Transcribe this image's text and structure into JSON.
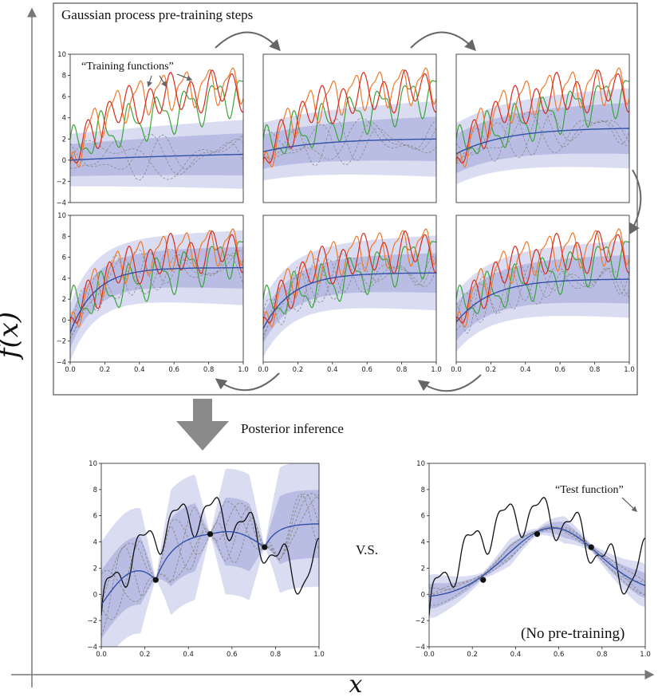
{
  "title": "Gaussian process pre-training steps",
  "training_functions_label": "“Training functions”",
  "posterior_label": "Posterior inference",
  "vs_label": "V.S.",
  "test_function_label": "“Test function”",
  "no_pretraining_label": "(No pre-training)",
  "y_axis_label": "f(x)",
  "x_axis_label": "x",
  "colors": {
    "green": "#3aa53a",
    "orange": "#f07a2a",
    "red": "#d62c1f",
    "mean": "#3350a8",
    "band_inner": "#b9bde3",
    "band_outer": "#dadcf2",
    "sample": "#8a8a8a",
    "test": "#111111",
    "arrow": "#666666"
  },
  "chart_data": [
    {
      "type": "line",
      "panel": "pretraining step 1",
      "xlim": [
        0,
        1
      ],
      "ylim": [
        -4,
        10
      ],
      "x_ticks": [],
      "y_ticks": [
        "10",
        "8",
        "6",
        "4",
        "2",
        "0",
        "−2",
        "−4"
      ],
      "mean": {
        "start": 0.0,
        "end": 0.55,
        "rise_rate": 1.0
      },
      "sd_inner": 1.9,
      "sd_outer": 3.1,
      "series": [
        {
          "values_desc": "training functions green/orange/red"
        }
      ]
    },
    {
      "type": "line",
      "panel": "pretraining step 2",
      "xlim": [
        0,
        1
      ],
      "ylim": [
        -4,
        10
      ],
      "mean": {
        "start": 0.8,
        "end": 2.0,
        "rise_rate": 3.0
      },
      "sd_inner": 2.0,
      "sd_outer": 3.4
    },
    {
      "type": "line",
      "panel": "pretraining step 3",
      "xlim": [
        0,
        1
      ],
      "ylim": [
        -4,
        10
      ],
      "mean": {
        "start": 0.6,
        "end": 3.0,
        "rise_rate": 3.5
      },
      "sd_inner": 2.3,
      "sd_outer": 3.6
    },
    {
      "type": "line",
      "panel": "pretraining step 4",
      "xlim": [
        0,
        1
      ],
      "ylim": [
        -4,
        10
      ],
      "x_ticks": [
        "0.0",
        "0.2",
        "0.4",
        "0.6",
        "0.8",
        "1.0"
      ],
      "y_ticks": [
        "10",
        "8",
        "6",
        "4",
        "2",
        "0",
        "−2",
        "−4"
      ],
      "mean": {
        "start": -1.2,
        "end": 5.0,
        "rise_rate": 7.0
      },
      "sd_inner": 1.9,
      "sd_outer": 3.4
    },
    {
      "type": "line",
      "panel": "pretraining step 5",
      "xlim": [
        0,
        1
      ],
      "ylim": [
        -4,
        10
      ],
      "x_ticks": [
        "0.0",
        "0.2",
        "0.4",
        "0.6",
        "0.8",
        "1.0"
      ],
      "mean": {
        "start": -0.8,
        "end": 4.5,
        "rise_rate": 6.0
      },
      "sd_inner": 1.8,
      "sd_outer": 3.4
    },
    {
      "type": "line",
      "panel": "pretraining step 6",
      "xlim": [
        0,
        1
      ],
      "ylim": [
        -4,
        10
      ],
      "x_ticks": [
        "0.0",
        "0.2",
        "0.4",
        "0.6",
        "0.8",
        "1.0"
      ],
      "mean": {
        "start": -0.2,
        "end": 3.9,
        "rise_rate": 5.0
      },
      "sd_inner": 2.2,
      "sd_outer": 3.5
    },
    {
      "type": "line",
      "panel": "posterior with pre-training",
      "xlim": [
        0,
        1
      ],
      "ylim": [
        -4,
        10
      ],
      "x_ticks": [
        "0.0",
        "0.2",
        "0.4",
        "0.6",
        "0.8",
        "1.0"
      ],
      "y_ticks": [
        "10",
        "8",
        "6",
        "4",
        "2",
        "0",
        "−2",
        "−4"
      ],
      "observations": [
        {
          "x": 0.25,
          "y": 1.1
        },
        {
          "x": 0.5,
          "y": 4.6
        },
        {
          "x": 0.75,
          "y": 3.6
        }
      ]
    },
    {
      "type": "line",
      "panel": "posterior without pre-training",
      "xlim": [
        0,
        1
      ],
      "ylim": [
        -4,
        10
      ],
      "x_ticks": [
        "0.0",
        "0.2",
        "0.4",
        "0.6",
        "0.8",
        "1.0"
      ],
      "y_ticks": [
        "10",
        "8",
        "6",
        "4",
        "2",
        "0",
        "−2",
        "−4"
      ],
      "observations": [
        {
          "x": 0.25,
          "y": 1.1
        },
        {
          "x": 0.5,
          "y": 4.6
        },
        {
          "x": 0.75,
          "y": 3.6
        }
      ]
    }
  ]
}
